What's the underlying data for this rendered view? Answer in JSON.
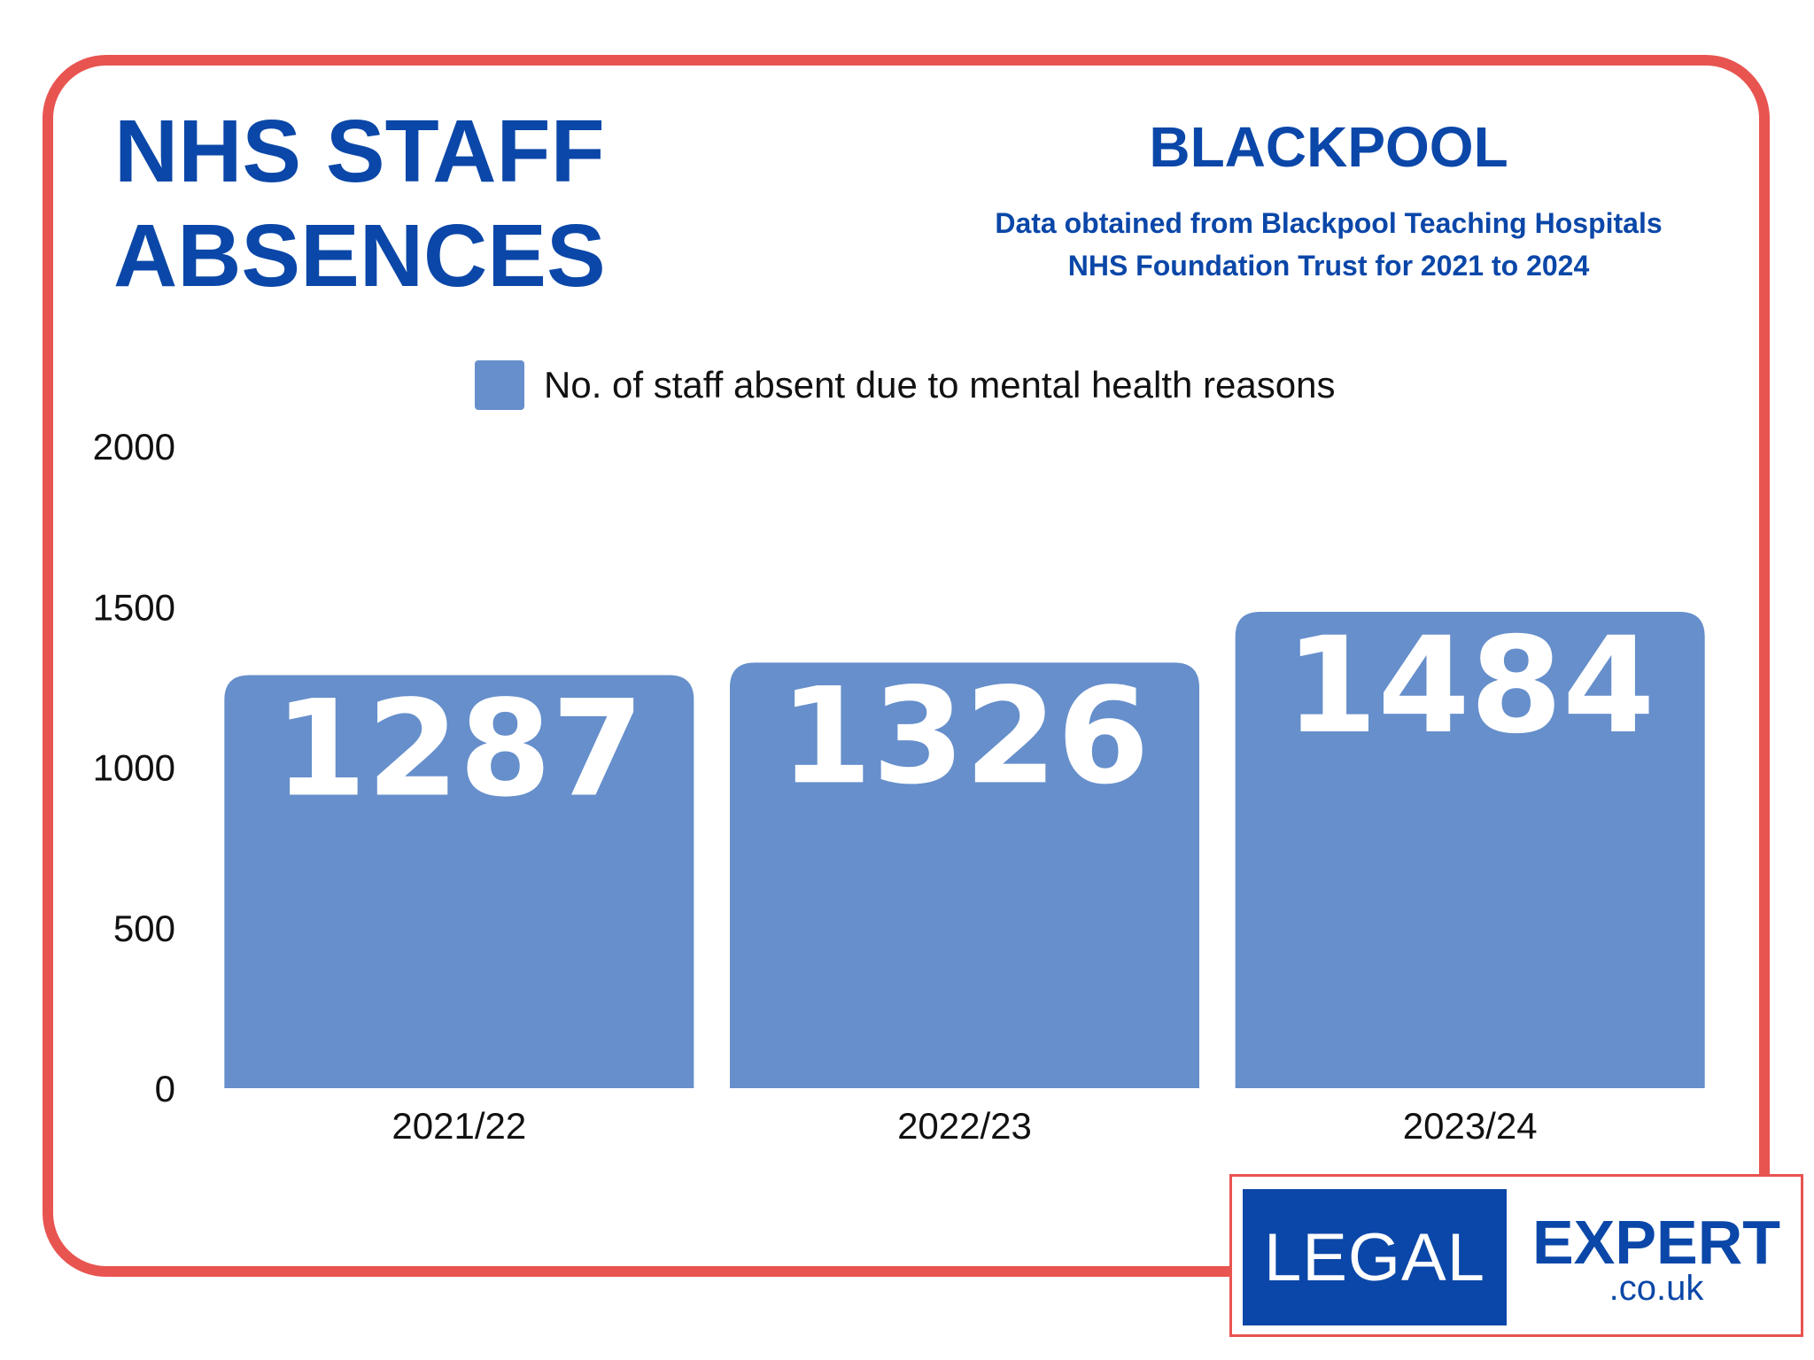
{
  "header": {
    "title_lines": [
      "NHS STAFF",
      "ABSENCES"
    ],
    "location": "BLACKPOOL",
    "subtitle_lines": [
      "Data obtained from Blackpool Teaching Hospitals",
      "NHS Foundation Trust for 2021 to 2024"
    ]
  },
  "colors": {
    "frame": "#e85450",
    "brand_blue": "#0b47a8",
    "bar": "#668fcb",
    "bar_label": "#ffffff",
    "axis_text": "#111111"
  },
  "chart_data": {
    "type": "bar",
    "categories": [
      "2021/22",
      "2022/23",
      "2023/24"
    ],
    "series": [
      {
        "name": "No. of staff absent due to mental health reasons",
        "values": [
          1287,
          1326,
          1484
        ]
      }
    ],
    "ylim": [
      0,
      2000
    ],
    "yticks": [
      0,
      500,
      1000,
      1500,
      2000
    ],
    "grid": false,
    "legend_position": "top",
    "data_labels": "inside-top",
    "xlabel": "",
    "ylabel": ""
  },
  "logo": {
    "text": "LEGAL EXPERT .co.uk"
  }
}
